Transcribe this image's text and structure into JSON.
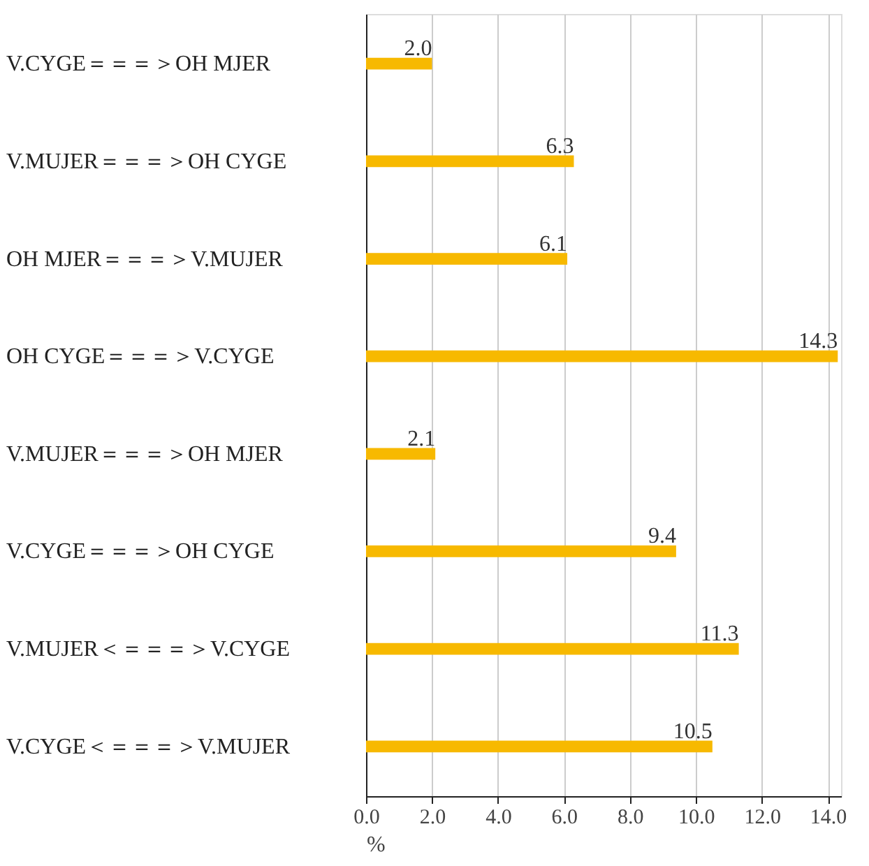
{
  "chart_data": {
    "type": "bar",
    "orientation": "horizontal",
    "xlabel": "%",
    "categories": [
      "V.CYGE＝＝＝＞OH MJER",
      "V.MUJER＝＝＝＞OH CYGE",
      "OH MJER＝＝＝＞V.MUJER",
      "OH CYGE＝＝＝＞V.CYGE",
      "V.MUJER＝＝＝＞OH MJER",
      "V.CYGE＝＝＝＞OH CYGE",
      "V.MUJER＜＝＝＝＞V.CYGE",
      "V.CYGE＜＝＝＝＞V.MUJER"
    ],
    "values": [
      2.0,
      6.3,
      6.1,
      14.3,
      2.1,
      9.4,
      11.3,
      10.5
    ],
    "value_labels": [
      "2.0",
      "6.3",
      "6.1",
      "14.3",
      "2.1",
      "9.4",
      "11.3",
      "10.5"
    ],
    "color": "#f7b900",
    "xlim": [
      0,
      14.4
    ],
    "xticks": [
      {
        "value": 0,
        "label": "0.0"
      },
      {
        "value": 2,
        "label": "2.0"
      },
      {
        "value": 4,
        "label": "4.0"
      },
      {
        "value": 6,
        "label": "6.0"
      },
      {
        "value": 8,
        "label": "8.0"
      },
      {
        "value": 10,
        "label": "10.0"
      },
      {
        "value": 12,
        "label": "12.0"
      },
      {
        "value": 14,
        "label": "14.0"
      }
    ],
    "grid": "x"
  }
}
